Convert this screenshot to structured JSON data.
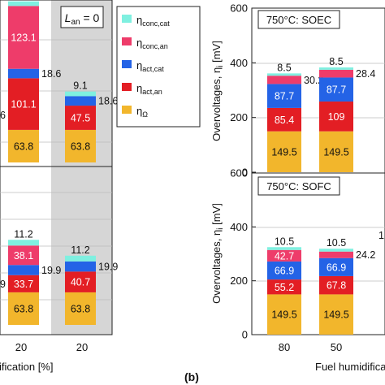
{
  "colors": {
    "omega": "#f2b62c",
    "act_an": "#e31e24",
    "act_cat": "#2463e6",
    "conc_an": "#ee3c6a",
    "conc_cat": "#7ff0e0",
    "shade": "#d6d6d6",
    "axis": "#222222"
  },
  "left_panel": {
    "top_box_label": "L_an = 0",
    "legend": [
      {
        "key": "conc_cat",
        "base": "η",
        "sub": "conc,cat"
      },
      {
        "key": "conc_an",
        "base": "η",
        "sub": "conc,an"
      },
      {
        "key": "act_cat",
        "base": "η",
        "sub": "act,cat"
      },
      {
        "key": "act_an",
        "base": "η",
        "sub": "act,an"
      },
      {
        "key": "omega",
        "base": "η",
        "sub": "Ω"
      }
    ],
    "xlabel_fragment": "ification [%]",
    "tick_labels": [
      "20",
      "20"
    ],
    "top_chart": {
      "bars": [
        {
          "segments": {
            "omega": 63.8,
            "act_an": 101.1,
            "act_cat": 18.6,
            "conc_an": 123.1,
            "conc_cat": 9.1
          },
          "labels": {
            "omega": "63.8",
            "act_an": "101.1",
            "act_cat": "18.6",
            "conc_an": "123.1",
            "conc_cat": "9.1"
          }
        },
        {
          "segments": {
            "omega": 63.8,
            "act_an": 47.5,
            "act_cat": 18.6,
            "conc_an": 0,
            "conc_cat": 9.1
          },
          "labels": {
            "omega": "63.8",
            "act_an": "47.5",
            "act_cat": "18.6",
            "conc_cat": "9.1"
          }
        }
      ],
      "edge_fragment": "6"
    },
    "bottom_chart": {
      "bars": [
        {
          "segments": {
            "omega": 63.8,
            "act_an": 33.7,
            "act_cat": 19.9,
            "conc_an": 38.1,
            "conc_cat": 11.2
          },
          "labels": {
            "omega": "63.8",
            "act_an": "33.7",
            "act_cat": "19.9",
            "conc_an": "38.1",
            "conc_cat": "11.2"
          }
        },
        {
          "segments": {
            "omega": 63.8,
            "act_an": 40.7,
            "act_cat": 19.9,
            "conc_an": 0,
            "conc_cat": 11.2
          },
          "labels": {
            "omega": "63.8",
            "act_an": "40.7",
            "act_cat": "19.9",
            "conc_cat": "11.2"
          }
        }
      ],
      "edge_fragment": "9"
    }
  },
  "right_panel": {
    "ylabel": "Overvoltages, η",
    "ylabel_sub": "i",
    "ylabel_unit": " [mV]",
    "xlabel": "Fuel humidificati",
    "panel_tag": "(b)",
    "tick_labels": [
      "80",
      "50"
    ],
    "top_chart": {
      "title": "750°C: SOEC",
      "ylim": [
        0,
        600
      ],
      "yticks": [
        "0",
        "200",
        "400",
        "600"
      ],
      "bars": [
        {
          "segments": {
            "omega": 149.5,
            "act_an": 85.4,
            "act_cat": 87.7,
            "conc_an": 30.2,
            "conc_cat": 8.5
          },
          "labels": {
            "omega": "149.5",
            "act_an": "85.4",
            "act_cat": "87.7",
            "conc_an": "30.2",
            "conc_cat": "8.5"
          }
        },
        {
          "segments": {
            "omega": 149.5,
            "act_an": 109,
            "act_cat": 87.7,
            "conc_an": 28.4,
            "conc_cat": 8.5
          },
          "labels": {
            "omega": "149.5",
            "act_an": "109",
            "act_cat": "87.7",
            "conc_an": "28.4",
            "conc_cat": "8.5"
          }
        }
      ]
    },
    "bottom_chart": {
      "title": "750°C: SOFC",
      "ylim": [
        0,
        600
      ],
      "yticks": [
        "0",
        "200",
        "400",
        "600"
      ],
      "bars": [
        {
          "segments": {
            "omega": 149.5,
            "act_an": 55.2,
            "act_cat": 66.9,
            "conc_an": 42.7,
            "conc_cat": 10.5
          },
          "labels": {
            "omega": "149.5",
            "act_an": "55.2",
            "act_cat": "66.9",
            "conc_an": "42.7",
            "conc_cat": "10.5"
          }
        },
        {
          "segments": {
            "omega": 149.5,
            "act_an": 67.8,
            "act_cat": 66.9,
            "conc_an": 24.2,
            "conc_cat": 10.5
          },
          "labels": {
            "omega": "149.5",
            "act_an": "67.8",
            "act_cat": "66.9",
            "conc_an": "24.2",
            "conc_cat": "10.5"
          }
        }
      ],
      "edge_fragment": "1"
    }
  },
  "chart_data": [
    {
      "type": "bar",
      "stacked": true,
      "panel": "left-top",
      "annotation": "L_an = 0",
      "categories": [
        "20",
        "20"
      ],
      "series": [
        {
          "name": "η_Ω",
          "values": [
            63.8,
            63.8
          ]
        },
        {
          "name": "η_act,an",
          "values": [
            101.1,
            47.5
          ]
        },
        {
          "name": "η_act,cat",
          "values": [
            18.6,
            18.6
          ]
        },
        {
          "name": "η_conc,an",
          "values": [
            123.1,
            0
          ]
        },
        {
          "name": "η_conc,cat",
          "values": [
            9.1,
            9.1
          ]
        }
      ]
    },
    {
      "type": "bar",
      "stacked": true,
      "panel": "left-bottom",
      "categories": [
        "20",
        "20"
      ],
      "series": [
        {
          "name": "η_Ω",
          "values": [
            63.8,
            63.8
          ]
        },
        {
          "name": "η_act,an",
          "values": [
            33.7,
            40.7
          ]
        },
        {
          "name": "η_act,cat",
          "values": [
            19.9,
            19.9
          ]
        },
        {
          "name": "η_conc,an",
          "values": [
            38.1,
            0
          ]
        },
        {
          "name": "η_conc,cat",
          "values": [
            11.2,
            11.2
          ]
        }
      ]
    },
    {
      "type": "bar",
      "stacked": true,
      "panel": "right-top",
      "title": "750°C: SOEC",
      "ylabel": "Overvoltages, η_i [mV]",
      "ylim": [
        0,
        600
      ],
      "categories": [
        "80",
        "50"
      ],
      "series": [
        {
          "name": "η_Ω",
          "values": [
            149.5,
            149.5
          ]
        },
        {
          "name": "η_act,an",
          "values": [
            85.4,
            109
          ]
        },
        {
          "name": "η_act,cat",
          "values": [
            87.7,
            87.7
          ]
        },
        {
          "name": "η_conc,an",
          "values": [
            30.2,
            28.4
          ]
        },
        {
          "name": "η_conc,cat",
          "values": [
            8.5,
            8.5
          ]
        }
      ]
    },
    {
      "type": "bar",
      "stacked": true,
      "panel": "right-bottom",
      "title": "750°C: SOFC",
      "ylabel": "Overvoltages, η_i [mV]",
      "xlabel": "Fuel humidificati",
      "ylim": [
        0,
        600
      ],
      "categories": [
        "80",
        "50"
      ],
      "series": [
        {
          "name": "η_Ω",
          "values": [
            149.5,
            149.5
          ]
        },
        {
          "name": "η_act,an",
          "values": [
            55.2,
            67.8
          ]
        },
        {
          "name": "η_act,cat",
          "values": [
            66.9,
            66.9
          ]
        },
        {
          "name": "η_conc,an",
          "values": [
            42.7,
            24.2
          ]
        },
        {
          "name": "η_conc,cat",
          "values": [
            10.5,
            10.5
          ]
        }
      ]
    }
  ]
}
